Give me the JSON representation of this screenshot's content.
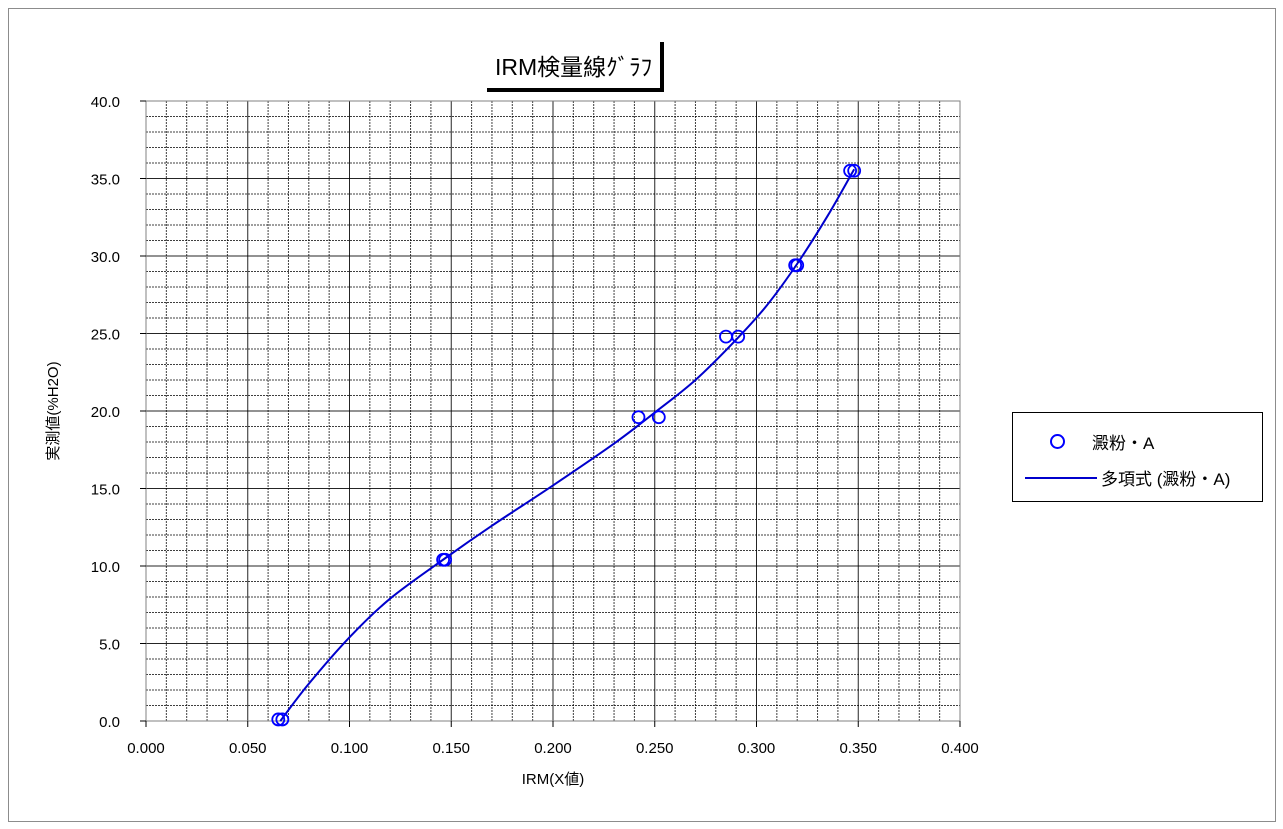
{
  "chart_data": {
    "type": "scatter",
    "title": "IRM検量線ｸﾞﾗﾌ",
    "xlabel": "IRM(X値)",
    "ylabel": "実測値(%H2O)",
    "xlim": [
      0.0,
      0.4
    ],
    "ylim": [
      0.0,
      40.0
    ],
    "x_ticks": [
      "0.000",
      "0.050",
      "0.100",
      "0.150",
      "0.200",
      "0.250",
      "0.300",
      "0.350",
      "0.400"
    ],
    "y_ticks": [
      "0.0",
      "5.0",
      "10.0",
      "15.0",
      "20.0",
      "25.0",
      "30.0",
      "35.0",
      "40.0"
    ],
    "grid": true,
    "legend_position": "right",
    "series": [
      {
        "name": "澱粉・A",
        "kind": "points",
        "color": "#0000ff",
        "points": [
          [
            0.065,
            0.1
          ],
          [
            0.067,
            0.1
          ],
          [
            0.146,
            10.4
          ],
          [
            0.147,
            10.4
          ],
          [
            0.242,
            19.6
          ],
          [
            0.252,
            19.6
          ],
          [
            0.285,
            24.8
          ],
          [
            0.291,
            24.8
          ],
          [
            0.319,
            29.4
          ],
          [
            0.32,
            29.4
          ],
          [
            0.346,
            35.5
          ],
          [
            0.348,
            35.5
          ]
        ]
      },
      {
        "name": "多項式 (澱粉・A)",
        "kind": "trendline",
        "color": "#0000cc",
        "points": [
          [
            0.066,
            0.0
          ],
          [
            0.08,
            2.4
          ],
          [
            0.1,
            5.4
          ],
          [
            0.12,
            7.9
          ],
          [
            0.147,
            10.5
          ],
          [
            0.17,
            12.6
          ],
          [
            0.2,
            15.2
          ],
          [
            0.23,
            17.9
          ],
          [
            0.25,
            19.9
          ],
          [
            0.27,
            22.0
          ],
          [
            0.29,
            24.6
          ],
          [
            0.305,
            26.8
          ],
          [
            0.32,
            29.5
          ],
          [
            0.335,
            32.6
          ],
          [
            0.348,
            35.6
          ]
        ]
      }
    ]
  }
}
